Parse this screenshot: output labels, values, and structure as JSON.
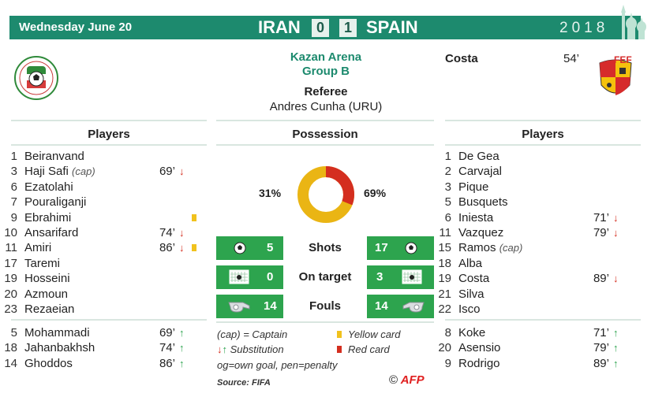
{
  "header": {
    "date": "Wednesday June 20",
    "team_a": "IRAN",
    "score_a": "0",
    "score_b": "1",
    "team_b": "SPAIN",
    "year": "2018"
  },
  "venue": {
    "stadium": "Kazan Arena",
    "group": "Group B"
  },
  "referee": {
    "label": "Referee",
    "name": "Andres Cunha",
    "country": "(URU)"
  },
  "scorers": [
    {
      "name": "Costa",
      "minute": "54’"
    }
  ],
  "columns": {
    "players_a": "Players",
    "possession": "Possession",
    "players_b": "Players"
  },
  "possession": {
    "a": "31%",
    "b": "69%",
    "a_value": 31,
    "b_value": 69
  },
  "stats": [
    {
      "label": "Shots",
      "a": "5",
      "b": "17",
      "icon": "soccer-ball-icon"
    },
    {
      "label": "On target",
      "a": "0",
      "b": "3",
      "icon": "goal-icon"
    },
    {
      "label": "Fouls",
      "a": "14",
      "b": "14",
      "icon": "whistle-icon"
    }
  ],
  "iran_starting": [
    {
      "num": "1",
      "name": "Beiranvand"
    },
    {
      "num": "3",
      "name": "Haji Safi",
      "cap": "(cap)",
      "minute": "69’",
      "sub": "down"
    },
    {
      "num": "6",
      "name": "Ezatolahi"
    },
    {
      "num": "7",
      "name": "Pouraliganji"
    },
    {
      "num": "9",
      "name": "Ebrahimi",
      "card": "yellow"
    },
    {
      "num": "10",
      "name": "Ansarifard",
      "minute": "74’",
      "sub": "down"
    },
    {
      "num": "11",
      "name": "Amiri",
      "minute": "86’",
      "sub": "down",
      "card": "yellow"
    },
    {
      "num": "17",
      "name": "Taremi"
    },
    {
      "num": "19",
      "name": "Hosseini"
    },
    {
      "num": "20",
      "name": "Azmoun"
    },
    {
      "num": "23",
      "name": "Rezaeian"
    }
  ],
  "iran_subs": [
    {
      "num": "5",
      "name": "Mohammadi",
      "minute": "69’",
      "sub": "up"
    },
    {
      "num": "18",
      "name": "Jahanbakhsh",
      "minute": "74’",
      "sub": "up"
    },
    {
      "num": "14",
      "name": "Ghoddos",
      "minute": "86’",
      "sub": "up"
    }
  ],
  "spain_starting": [
    {
      "num": "1",
      "name": "De Gea"
    },
    {
      "num": "2",
      "name": "Carvajal"
    },
    {
      "num": "3",
      "name": "Pique"
    },
    {
      "num": "5",
      "name": "Busquets"
    },
    {
      "num": "6",
      "name": "Iniesta",
      "minute": "71’",
      "sub": "down"
    },
    {
      "num": "11",
      "name": "Vazquez",
      "minute": "79’",
      "sub": "down"
    },
    {
      "num": "15",
      "name": "Ramos",
      "cap": "(cap)"
    },
    {
      "num": "18",
      "name": "Alba"
    },
    {
      "num": "19",
      "name": "Costa",
      "minute": "89’",
      "sub": "down"
    },
    {
      "num": "21",
      "name": "Silva"
    },
    {
      "num": "22",
      "name": "Isco"
    }
  ],
  "spain_subs": [
    {
      "num": "8",
      "name": "Koke",
      "minute": "71’",
      "sub": "up"
    },
    {
      "num": "20",
      "name": "Asensio",
      "minute": "79’",
      "sub": "up"
    },
    {
      "num": "9",
      "name": "Rodrigo",
      "minute": "89’",
      "sub": "up"
    }
  ],
  "legend": {
    "captain": "(cap) = Captain",
    "substitution": "Substitution",
    "yellow": "Yellow card",
    "red": "Red card",
    "og": "og=own goal, pen=penalty"
  },
  "source": "Source: FIFA",
  "credit": {
    "copyright": "©",
    "agency": "AFP"
  },
  "colors": {
    "green": "#1d8a6e",
    "stat_green": "#2da44e",
    "red": "#d42e1f",
    "yellow": "#f1c21d",
    "possession_a": "#d42e1f",
    "possession_b": "#eab514"
  }
}
